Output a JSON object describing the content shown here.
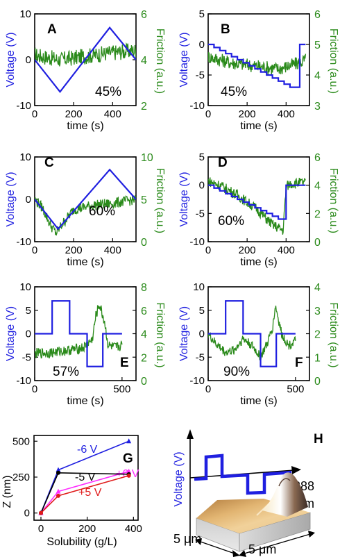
{
  "colors": {
    "voltage": "#1f1fe0",
    "friction": "#2a8a1a",
    "axis": "#000000",
    "g_m6": "#1f1fe0",
    "g_p6": "#ff2cff",
    "g_m5": "#000000",
    "g_p5": "#e01a1a"
  },
  "chart_data": [
    {
      "id": "A",
      "type": "line",
      "letter": "A",
      "percent": "45%",
      "xlabel": "time (s)",
      "ylabel_left": "Voltage (V)",
      "ylabel_right": "Friction (a.u.)",
      "xlim": [
        0,
        520
      ],
      "ylim_left": [
        -10,
        10
      ],
      "ylim_right": [
        2,
        6
      ],
      "xticks": [
        "0",
        "200",
        "400"
      ],
      "yticks_left": [
        "-10",
        "0",
        "10"
      ],
      "yticks_right": [
        "2",
        "4",
        "6"
      ],
      "series": [
        {
          "axis": "left",
          "x": [
            0,
            130,
            385,
            520
          ],
          "y": [
            0,
            -7,
            7,
            0
          ]
        },
        {
          "axis": "right",
          "noise": 0.35,
          "x": [
            0,
            130,
            260,
            385,
            520
          ],
          "y": [
            4.2,
            4.0,
            4.15,
            4.3,
            4.4
          ]
        }
      ]
    },
    {
      "id": "B",
      "type": "line",
      "letter": "B",
      "percent": "45%",
      "xlabel": "time (s)",
      "ylabel_left": "Voltage (V)",
      "ylabel_right": "Friction (a.u.)",
      "xlim": [
        0,
        520
      ],
      "ylim_left": [
        -10,
        5
      ],
      "ylim_right": [
        3,
        6
      ],
      "xticks": [
        "0",
        "200",
        "400"
      ],
      "yticks_left": [
        "-10",
        "-5",
        "0",
        "5"
      ],
      "yticks_right": [
        "3",
        "4",
        "5",
        "6"
      ],
      "series": [
        {
          "axis": "left",
          "steps": true,
          "x": [
            0,
            30,
            60,
            90,
            120,
            150,
            180,
            210,
            240,
            270,
            300,
            330,
            360,
            390,
            420,
            450,
            470,
            500
          ],
          "y": [
            0,
            -0.5,
            -1,
            -1.5,
            -2,
            -2.5,
            -3,
            -3.5,
            -4,
            -4.5,
            -5,
            -5.5,
            -6,
            -6.5,
            -7,
            -7,
            0,
            0
          ]
        },
        {
          "axis": "right",
          "noise": 0.3,
          "x": [
            0,
            120,
            240,
            360,
            470,
            500
          ],
          "y": [
            4.6,
            4.4,
            4.3,
            4.2,
            4.4,
            4.5
          ]
        }
      ]
    },
    {
      "id": "C",
      "type": "line",
      "letter": "C",
      "percent": "60%",
      "xlabel": "time (s)",
      "ylabel_left": "Voltage (V)",
      "ylabel_right": "Friction (a.u.)",
      "xlim": [
        0,
        520
      ],
      "ylim_left": [
        -10,
        10
      ],
      "ylim_right": [
        0,
        10
      ],
      "xticks": [
        "0",
        "200",
        "400"
      ],
      "yticks_left": [
        "-10",
        "0",
        "10"
      ],
      "yticks_right": [
        "0",
        "5",
        "10"
      ],
      "series": [
        {
          "axis": "left",
          "x": [
            0,
            120,
            385,
            520
          ],
          "y": [
            0,
            -7,
            7,
            0
          ]
        },
        {
          "axis": "right",
          "noise": 0.25,
          "x": [
            0,
            40,
            80,
            110,
            140,
            200,
            300,
            400,
            520
          ],
          "y": [
            5,
            4,
            2,
            1,
            2,
            3.8,
            4.3,
            4.5,
            5
          ]
        }
      ]
    },
    {
      "id": "D",
      "type": "line",
      "letter": "D",
      "percent": "60%",
      "xlabel": "time (s)",
      "ylabel_left": "Voltage (V)",
      "ylabel_right": "Friction (a.u.)",
      "xlim": [
        0,
        520
      ],
      "ylim_left": [
        -10,
        5
      ],
      "ylim_right": [
        0,
        6
      ],
      "xticks": [
        "0",
        "200",
        "400"
      ],
      "yticks_left": [
        "-10",
        "-5",
        "0",
        "5"
      ],
      "yticks_right": [
        "0",
        "2",
        "4",
        "6"
      ],
      "series": [
        {
          "axis": "left",
          "steps": true,
          "x": [
            0,
            30,
            60,
            90,
            120,
            150,
            180,
            210,
            240,
            270,
            300,
            330,
            360,
            390,
            400,
            500
          ],
          "y": [
            0,
            -0.5,
            -1,
            -1.5,
            -2,
            -2.5,
            -3,
            -3.5,
            -4,
            -4.5,
            -5,
            -5.5,
            -6,
            -6,
            0,
            0
          ]
        },
        {
          "axis": "right",
          "noise": 0.25,
          "x": [
            0,
            60,
            150,
            250,
            330,
            385,
            400,
            420,
            500
          ],
          "y": [
            4.3,
            4.0,
            3.3,
            2.3,
            1.2,
            0.8,
            3.9,
            4.1,
            4.2
          ]
        }
      ]
    },
    {
      "id": "E",
      "type": "line",
      "letter": "E",
      "percent": "57%",
      "xlabel": "time (s)",
      "ylabel_left": "Voltage (V)",
      "ylabel_right": "Friction (a.u.)",
      "xlim": [
        0,
        580
      ],
      "ylim_left": [
        -10,
        10
      ],
      "ylim_right": [
        0,
        8
      ],
      "xticks": [
        "0",
        "500"
      ],
      "yticks_left": [
        "-10",
        "-5",
        "0",
        "5",
        "10"
      ],
      "yticks_right": [
        "0",
        "2",
        "4",
        "6",
        "8"
      ],
      "series": [
        {
          "axis": "left",
          "steps": true,
          "x": [
            0,
            100,
            200,
            300,
            390,
            500
          ],
          "y": [
            0,
            7,
            0,
            -7,
            0,
            0
          ]
        },
        {
          "axis": "right",
          "noise": 0.22,
          "x": [
            0,
            100,
            200,
            280,
            330,
            350,
            370,
            400,
            420,
            460,
            500
          ],
          "y": [
            2.3,
            2.4,
            2.6,
            2.8,
            3.5,
            5.5,
            6.5,
            5.0,
            3.0,
            2.8,
            3.0
          ]
        }
      ]
    },
    {
      "id": "F",
      "type": "line",
      "letter": "F",
      "percent": "90%",
      "xlabel": "time (s)",
      "ylabel_left": "Voltage (V)",
      "ylabel_right": "Friction (a.u.)",
      "xlim": [
        0,
        580
      ],
      "ylim_left": [
        -10,
        10
      ],
      "ylim_right": [
        0,
        4
      ],
      "xticks": [
        "0",
        "500"
      ],
      "yticks_left": [
        "-10",
        "-5",
        "0",
        "5",
        "10"
      ],
      "yticks_right": [
        "0",
        "1",
        "2",
        "3",
        "4"
      ],
      "series": [
        {
          "axis": "left",
          "steps": true,
          "x": [
            0,
            100,
            200,
            300,
            390,
            500
          ],
          "y": [
            0,
            7,
            0,
            -7,
            0,
            0
          ]
        },
        {
          "axis": "right",
          "noise": 0.2,
          "x": [
            0,
            40,
            100,
            150,
            200,
            250,
            300,
            340,
            370,
            385,
            420,
            460,
            500
          ],
          "y": [
            2.0,
            1.6,
            1.2,
            1.3,
            1.8,
            1.5,
            1.0,
            1.6,
            2.3,
            3.2,
            2.0,
            1.5,
            1.7
          ]
        }
      ]
    },
    {
      "id": "G",
      "type": "line",
      "letter": "G",
      "xlabel": "Solubility (g/L)",
      "ylabel": "Z (nm)",
      "xlim": [
        -30,
        420
      ],
      "ylim": [
        -50,
        540
      ],
      "xticks": [
        "0",
        "200",
        "400"
      ],
      "yticks": [
        "0",
        "250",
        "500"
      ],
      "series": [
        {
          "name": "-6 V",
          "color": "#1f1fe0",
          "marker": "triangle",
          "x": [
            0,
            75,
            380
          ],
          "y": [
            0,
            300,
            500
          ]
        },
        {
          "name": "+6 V",
          "color": "#ff2cff",
          "marker": "triangle",
          "x": [
            0,
            75,
            380
          ],
          "y": [
            0,
            150,
            290
          ]
        },
        {
          "name": "-5 V",
          "color": "#000000",
          "marker": "circle",
          "x": [
            0,
            75,
            380
          ],
          "y": [
            0,
            280,
            270
          ]
        },
        {
          "name": "+5 V",
          "color": "#e01a1a",
          "marker": "circle",
          "x": [
            0,
            75,
            380
          ],
          "y": [
            0,
            120,
            260
          ]
        }
      ]
    }
  ],
  "panel_h": {
    "letter": "H",
    "ylabel": "Voltage (V)",
    "height_label": "288",
    "height_unit": "nm",
    "dim_left": "5 μm",
    "dim_right": "5 μm"
  }
}
